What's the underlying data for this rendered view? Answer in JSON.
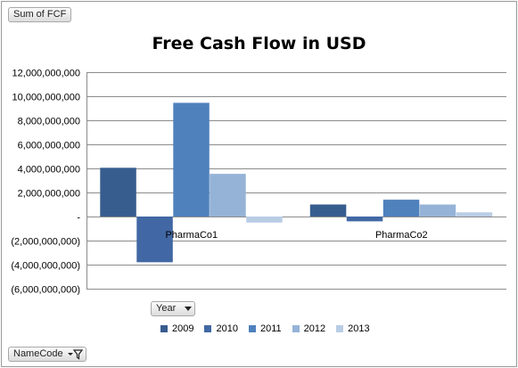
{
  "buttons": {
    "sum": "Sum of FCF",
    "year": "Year",
    "name": "NameCode"
  },
  "chart_data": {
    "type": "bar",
    "title": "Free Cash Flow in USD",
    "xlabel": "",
    "ylabel": "",
    "categories": [
      "PharmaCo1",
      "PharmaCo2"
    ],
    "series": [
      {
        "name": "2009",
        "color": "#375d8f",
        "values": [
          4050000000,
          1000000000
        ]
      },
      {
        "name": "2010",
        "color": "#4168a4",
        "values": [
          -3800000000,
          -400000000
        ]
      },
      {
        "name": "2011",
        "color": "#4f81bd",
        "values": [
          9450000000,
          1400000000
        ]
      },
      {
        "name": "2012",
        "color": "#95b3d7",
        "values": [
          3550000000,
          1000000000
        ]
      },
      {
        "name": "2013",
        "color": "#b9cde5",
        "values": [
          -500000000,
          350000000
        ]
      }
    ],
    "ylim": [
      -6000000000,
      12000000000
    ],
    "yticks": [
      12000000000,
      10000000000,
      8000000000,
      6000000000,
      4000000000,
      2000000000,
      0,
      -2000000000,
      -4000000000,
      -6000000000
    ],
    "ytick_labels": [
      "12,000,000,000",
      "10,000,000,000",
      "8,000,000,000",
      "6,000,000,000",
      "4,000,000,000",
      "2,000,000,000",
      "-",
      "(2,000,000,000)",
      "(4,000,000,000)",
      "(6,000,000,000)"
    ],
    "grid": true,
    "legend": "bottom"
  }
}
